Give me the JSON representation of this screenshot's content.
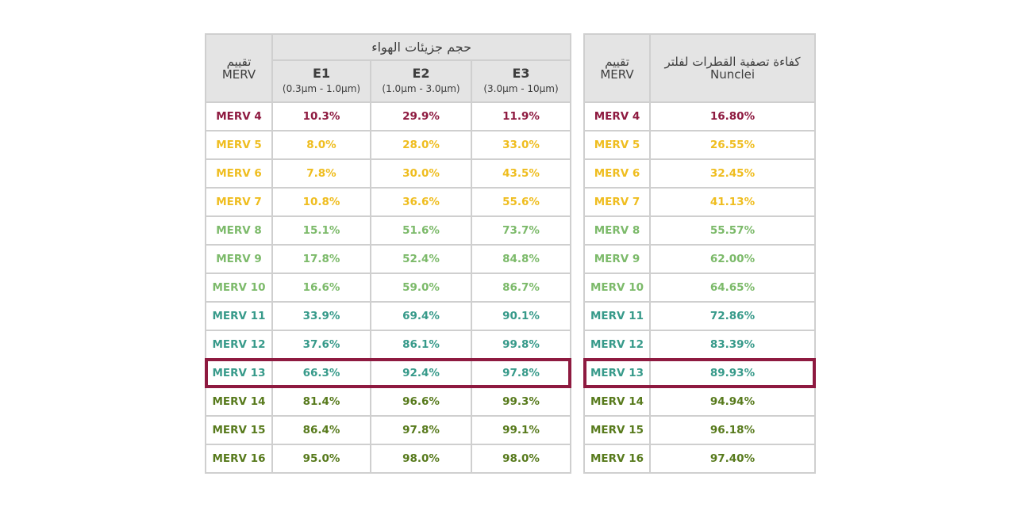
{
  "left_table": {
    "header": {
      "rating": "تقييم\nMERV",
      "group": "حجم جزيئات الهواء",
      "columns": [
        {
          "name": "E1",
          "range": "(0.3µm - 1.0µm)"
        },
        {
          "name": "E2",
          "range": "(1.0µm - 3.0µm)"
        },
        {
          "name": "E3",
          "range": "(3.0µm - 10µm)"
        }
      ]
    },
    "highlight_row": 9,
    "rows": [
      {
        "label": "MERV 4",
        "values": [
          "10.3%",
          "29.9%",
          "11.9%"
        ],
        "color": "#8e1a40"
      },
      {
        "label": "MERV 5",
        "values": [
          "8.0%",
          "28.0%",
          "33.0%"
        ],
        "color": "#efbd1f"
      },
      {
        "label": "MERV 6",
        "values": [
          "7.8%",
          "30.0%",
          "43.5%"
        ],
        "color": "#efbd1f"
      },
      {
        "label": "MERV 7",
        "values": [
          "10.8%",
          "36.6%",
          "55.6%"
        ],
        "color": "#efbd1f"
      },
      {
        "label": "MERV 8",
        "values": [
          "15.1%",
          "51.6%",
          "73.7%"
        ],
        "color": "#7cba6a"
      },
      {
        "label": "MERV 9",
        "values": [
          "17.8%",
          "52.4%",
          "84.8%"
        ],
        "color": "#7cba6a"
      },
      {
        "label": "MERV 10",
        "values": [
          "16.6%",
          "59.0%",
          "86.7%"
        ],
        "color": "#7cba6a"
      },
      {
        "label": "MERV 11",
        "values": [
          "33.9%",
          "69.4%",
          "90.1%"
        ],
        "color": "#379a8a"
      },
      {
        "label": "MERV 12",
        "values": [
          "37.6%",
          "86.1%",
          "99.8%"
        ],
        "color": "#379a8a"
      },
      {
        "label": "MERV 13",
        "values": [
          "66.3%",
          "92.4%",
          "97.8%"
        ],
        "color": "#379a8a"
      },
      {
        "label": "MERV 14",
        "values": [
          "81.4%",
          "96.6%",
          "99.3%"
        ],
        "color": "#577a1c"
      },
      {
        "label": "MERV 15",
        "values": [
          "86.4%",
          "97.8%",
          "99.1%"
        ],
        "color": "#577a1c"
      },
      {
        "label": "MERV 16",
        "values": [
          "95.0%",
          "98.0%",
          "98.0%"
        ],
        "color": "#577a1c"
      }
    ]
  },
  "right_table": {
    "header": {
      "rating": "تقييم\nMERV",
      "efficiency": "كفاءة تصفية القطرات لفلتر\nNunclei"
    },
    "highlight_row": 9,
    "rows": [
      {
        "label": "MERV 4",
        "value": "16.80%",
        "color": "#8e1a40"
      },
      {
        "label": "MERV 5",
        "value": "26.55%",
        "color": "#efbd1f"
      },
      {
        "label": "MERV 6",
        "value": "32.45%",
        "color": "#efbd1f"
      },
      {
        "label": "MERV 7",
        "value": "41.13%",
        "color": "#efbd1f"
      },
      {
        "label": "MERV 8",
        "value": "55.57%",
        "color": "#7cba6a"
      },
      {
        "label": "MERV 9",
        "value": "62.00%",
        "color": "#7cba6a"
      },
      {
        "label": "MERV 10",
        "value": "64.65%",
        "color": "#7cba6a"
      },
      {
        "label": "MERV 11",
        "value": "72.86%",
        "color": "#379a8a"
      },
      {
        "label": "MERV 12",
        "value": "83.39%",
        "color": "#379a8a"
      },
      {
        "label": "MERV 13",
        "value": "89.93%",
        "color": "#379a8a"
      },
      {
        "label": "MERV 14",
        "value": "94.94%",
        "color": "#577a1c"
      },
      {
        "label": "MERV 15",
        "value": "96.18%",
        "color": "#577a1c"
      },
      {
        "label": "MERV 16",
        "value": "97.40%",
        "color": "#577a1c"
      }
    ]
  }
}
